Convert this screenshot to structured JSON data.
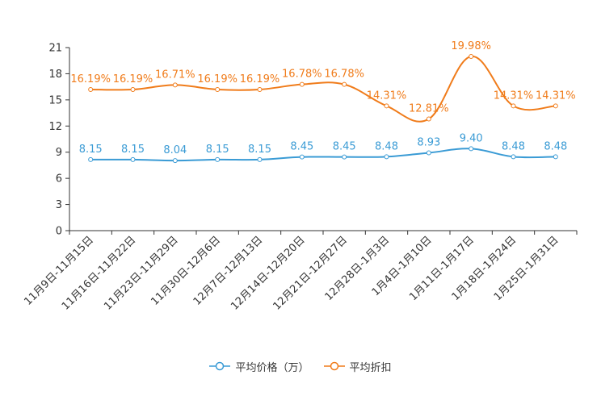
{
  "chart_data": {
    "type": "line",
    "title": "",
    "xlabel": "",
    "ylabel": "",
    "ylim": [
      0,
      21
    ],
    "yticks": [
      0,
      3,
      6,
      9,
      12,
      15,
      18,
      21
    ],
    "categories": [
      "11月9日-11月15日",
      "11月16日-11月22日",
      "11月23日-11月29日",
      "11月30日-12月6日",
      "12月7日-12月13日",
      "12月14日-12月20日",
      "12月21日-12月27日",
      "12月28日-1月3日",
      "1月4日-1月10日",
      "1月11日-1月17日",
      "1月18日-1月24日",
      "1月25日-1月31日"
    ],
    "series": [
      {
        "name": "平均价格（万）",
        "color": "#3a9bd5",
        "values": [
          8.15,
          8.15,
          8.04,
          8.15,
          8.15,
          8.45,
          8.45,
          8.48,
          8.93,
          9.4,
          8.48,
          8.48
        ],
        "labels": [
          "8.15",
          "8.15",
          "8.04",
          "8.15",
          "8.15",
          "8.45",
          "8.45",
          "8.48",
          "8.93",
          "9.40",
          "8.48",
          "8.48"
        ]
      },
      {
        "name": "平均折扣",
        "color": "#f07c1b",
        "values": [
          16.19,
          16.19,
          16.71,
          16.19,
          16.19,
          16.78,
          16.78,
          14.31,
          12.81,
          19.98,
          14.31,
          14.31
        ],
        "labels": [
          "16.19%",
          "16.19%",
          "16.71%",
          "16.19%",
          "16.19%",
          "16.78%",
          "16.78%",
          "14.31%",
          "12.81%",
          "19.98%",
          "14.31%",
          "14.31%"
        ]
      }
    ],
    "legend_position": "bottom"
  }
}
